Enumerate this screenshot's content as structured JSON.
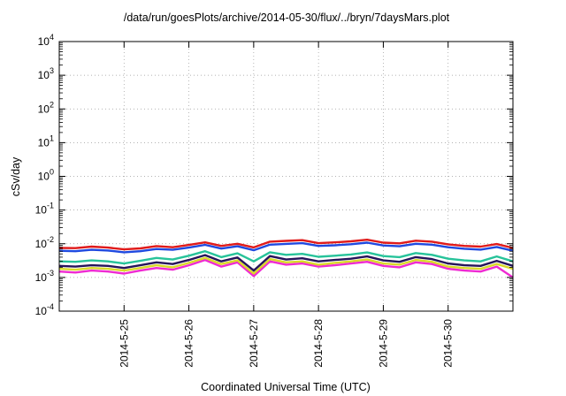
{
  "chart_data": {
    "type": "line",
    "title": "/data/run/goesPlots/archive/2014-05-30/flux/../bryn/7daysMars.plot",
    "xlabel": "Coordinated Universal Time (UTC)",
    "ylabel": "cSv/day",
    "yscale": "log",
    "ylim": [
      0.0001,
      10000
    ],
    "xlim": [
      24.0,
      31.0
    ],
    "x_ticks": [
      25,
      26,
      27,
      28,
      29,
      30
    ],
    "x_tick_labels": [
      "2014-5-25",
      "2014-5-26",
      "2014-5-27",
      "2014-5-28",
      "2014-5-29",
      "2014-5-30"
    ],
    "y_ticks": [
      {
        "base": "10",
        "exp": "-4",
        "value": 0.0001
      },
      {
        "base": "10",
        "exp": "-3",
        "value": 0.001
      },
      {
        "base": "10",
        "exp": "-2",
        "value": 0.01
      },
      {
        "base": "10",
        "exp": "-1",
        "value": 0.1
      },
      {
        "base": "10",
        "exp": "0",
        "value": 1
      },
      {
        "base": "10",
        "exp": "1",
        "value": 10
      },
      {
        "base": "10",
        "exp": "2",
        "value": 100
      },
      {
        "base": "10",
        "exp": "3",
        "value": 1000
      },
      {
        "base": "10",
        "exp": "4",
        "value": 10000
      }
    ],
    "grid": true,
    "legend": "none",
    "x": [
      24.0,
      24.25,
      24.5,
      24.75,
      25.0,
      25.25,
      25.5,
      25.75,
      26.0,
      26.25,
      26.5,
      26.75,
      27.0,
      27.25,
      27.5,
      27.75,
      28.0,
      28.25,
      28.5,
      28.75,
      29.0,
      29.25,
      29.5,
      29.75,
      30.0,
      30.25,
      30.5,
      30.75,
      31.0
    ],
    "series": [
      {
        "color": "#e01a1a",
        "values": [
          0.0075,
          0.0074,
          0.0082,
          0.0077,
          0.0068,
          0.0073,
          0.0085,
          0.0079,
          0.0092,
          0.011,
          0.0086,
          0.01,
          0.0078,
          0.0115,
          0.0122,
          0.0128,
          0.0104,
          0.011,
          0.0118,
          0.0132,
          0.0108,
          0.0103,
          0.0123,
          0.0115,
          0.0096,
          0.0086,
          0.0082,
          0.0098,
          0.0075
        ]
      },
      {
        "color": "#1f49e0",
        "values": [
          0.0062,
          0.006,
          0.0066,
          0.0063,
          0.0056,
          0.006,
          0.007,
          0.0066,
          0.0077,
          0.0093,
          0.0072,
          0.0084,
          0.0064,
          0.0094,
          0.0099,
          0.0104,
          0.0086,
          0.009,
          0.0097,
          0.0108,
          0.0089,
          0.0084,
          0.01,
          0.0094,
          0.0079,
          0.0071,
          0.0067,
          0.008,
          0.0062
        ]
      },
      {
        "color": "#27c39a",
        "values": [
          0.003,
          0.0029,
          0.0032,
          0.003,
          0.0026,
          0.0031,
          0.0038,
          0.0034,
          0.0044,
          0.006,
          0.004,
          0.0052,
          0.003,
          0.0056,
          0.0047,
          0.005,
          0.0041,
          0.0044,
          0.0048,
          0.0055,
          0.0043,
          0.004,
          0.0053,
          0.0047,
          0.0036,
          0.0032,
          0.003,
          0.0042,
          0.003
        ]
      },
      {
        "color": "#26145a",
        "values": [
          0.0022,
          0.0021,
          0.0023,
          0.0022,
          0.0019,
          0.0023,
          0.0028,
          0.0025,
          0.0033,
          0.0046,
          0.003,
          0.0039,
          0.0016,
          0.0043,
          0.0034,
          0.0037,
          0.003,
          0.0033,
          0.0036,
          0.0042,
          0.0032,
          0.0029,
          0.004,
          0.0035,
          0.0026,
          0.0023,
          0.0022,
          0.0031,
          0.0022
        ]
      },
      {
        "color": "#d9d928",
        "values": [
          0.0018,
          0.0017,
          0.0019,
          0.0018,
          0.0016,
          0.0019,
          0.0023,
          0.002,
          0.0027,
          0.0038,
          0.0025,
          0.0032,
          0.0013,
          0.0035,
          0.0028,
          0.003,
          0.0024,
          0.0027,
          0.003,
          0.0034,
          0.0026,
          0.0024,
          0.0033,
          0.0029,
          0.0021,
          0.0019,
          0.0018,
          0.0025,
          0.0018
        ]
      },
      {
        "color": "#ef2ad2",
        "values": [
          0.0015,
          0.0014,
          0.0016,
          0.0015,
          0.0013,
          0.0016,
          0.0019,
          0.0017,
          0.0023,
          0.0033,
          0.0021,
          0.0028,
          0.0011,
          0.003,
          0.0024,
          0.0026,
          0.0021,
          0.0023,
          0.0026,
          0.0029,
          0.0022,
          0.002,
          0.0028,
          0.0025,
          0.0018,
          0.0016,
          0.0015,
          0.0021,
          0.001
        ]
      }
    ]
  }
}
